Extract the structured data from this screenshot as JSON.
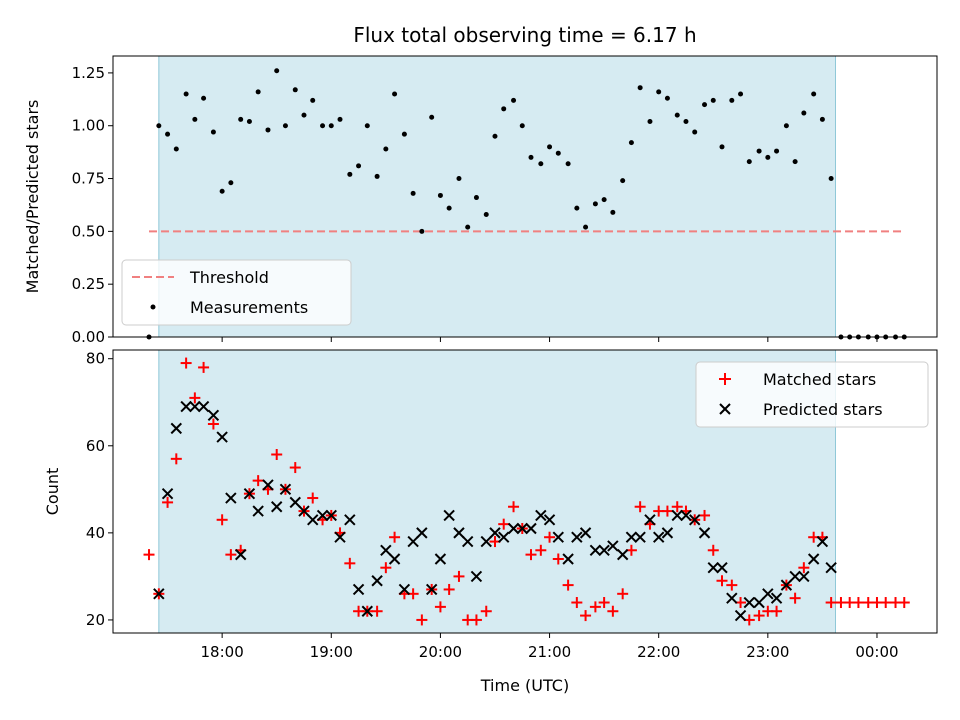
{
  "figure": {
    "title": "Flux total observing time = 6.17 h",
    "xlabel": "Time (UTC)",
    "x_ticks": [
      "18:00",
      "19:00",
      "20:00",
      "21:00",
      "22:00",
      "23:00",
      "00:00"
    ]
  },
  "chart_data": [
    {
      "type": "scatter",
      "title": "Flux total observing time = 6.17 h",
      "xlabel": "",
      "ylabel": "Matched/Predicted stars",
      "x_unit": "hours UTC",
      "xlim": [
        17.0,
        24.55
      ],
      "ylim": [
        0,
        1.33
      ],
      "y_ticks": [
        "0.00",
        "0.25",
        "0.50",
        "0.75",
        "1.00",
        "1.25"
      ],
      "observing_window": [
        17.42,
        23.62
      ],
      "threshold": {
        "name": "Threshold",
        "value": 0.5,
        "x_range": [
          17.33,
          24.25
        ],
        "color": "#f08080"
      },
      "legend": {
        "location": "lower-left",
        "entries": [
          "Threshold",
          "Measurements"
        ]
      },
      "series": [
        {
          "name": "Measurements",
          "color": "#000000",
          "points": [
            [
              17.33,
              0.0
            ],
            [
              17.42,
              1.0
            ],
            [
              17.5,
              0.96
            ],
            [
              17.58,
              0.89
            ],
            [
              17.67,
              1.15
            ],
            [
              17.75,
              1.03
            ],
            [
              17.83,
              1.13
            ],
            [
              17.92,
              0.97
            ],
            [
              18.0,
              0.69
            ],
            [
              18.08,
              0.73
            ],
            [
              18.17,
              1.03
            ],
            [
              18.25,
              1.02
            ],
            [
              18.33,
              1.16
            ],
            [
              18.42,
              0.98
            ],
            [
              18.5,
              1.26
            ],
            [
              18.58,
              1.0
            ],
            [
              18.67,
              1.17
            ],
            [
              18.75,
              1.05
            ],
            [
              18.83,
              1.12
            ],
            [
              18.92,
              1.0
            ],
            [
              19.0,
              1.0
            ],
            [
              19.08,
              1.03
            ],
            [
              19.17,
              0.77
            ],
            [
              19.25,
              0.81
            ],
            [
              19.33,
              1.0
            ],
            [
              19.42,
              0.76
            ],
            [
              19.5,
              0.89
            ],
            [
              19.58,
              1.15
            ],
            [
              19.67,
              0.96
            ],
            [
              19.75,
              0.68
            ],
            [
              19.83,
              0.5
            ],
            [
              19.92,
              1.04
            ],
            [
              20.0,
              0.67
            ],
            [
              20.08,
              0.61
            ],
            [
              20.17,
              0.75
            ],
            [
              20.25,
              0.52
            ],
            [
              20.33,
              0.66
            ],
            [
              20.42,
              0.58
            ],
            [
              20.5,
              0.95
            ],
            [
              20.58,
              1.08
            ],
            [
              20.67,
              1.12
            ],
            [
              20.75,
              1.0
            ],
            [
              20.83,
              0.85
            ],
            [
              20.92,
              0.82
            ],
            [
              21.0,
              0.9
            ],
            [
              21.08,
              0.87
            ],
            [
              21.17,
              0.82
            ],
            [
              21.25,
              0.61
            ],
            [
              21.33,
              0.52
            ],
            [
              21.42,
              0.63
            ],
            [
              21.5,
              0.65
            ],
            [
              21.58,
              0.59
            ],
            [
              21.67,
              0.74
            ],
            [
              21.75,
              0.92
            ],
            [
              21.83,
              1.18
            ],
            [
              21.92,
              1.02
            ],
            [
              22.0,
              1.16
            ],
            [
              22.08,
              1.13
            ],
            [
              22.17,
              1.05
            ],
            [
              22.25,
              1.02
            ],
            [
              22.33,
              0.97
            ],
            [
              22.42,
              1.1
            ],
            [
              22.5,
              1.12
            ],
            [
              22.58,
              0.9
            ],
            [
              22.67,
              1.12
            ],
            [
              22.75,
              1.15
            ],
            [
              22.83,
              0.83
            ],
            [
              22.92,
              0.88
            ],
            [
              23.0,
              0.85
            ],
            [
              23.08,
              0.88
            ],
            [
              23.17,
              1.0
            ],
            [
              23.25,
              0.83
            ],
            [
              23.33,
              1.06
            ],
            [
              23.42,
              1.15
            ],
            [
              23.5,
              1.03
            ],
            [
              23.58,
              0.75
            ],
            [
              23.67,
              0.0
            ],
            [
              23.75,
              0.0
            ],
            [
              23.83,
              0.0
            ],
            [
              23.92,
              0.0
            ],
            [
              24.0,
              0.0
            ],
            [
              24.08,
              0.0
            ],
            [
              24.17,
              0.0
            ],
            [
              24.25,
              0.0
            ]
          ]
        }
      ]
    },
    {
      "type": "scatter",
      "xlabel": "Time (UTC)",
      "ylabel": "Count",
      "x_unit": "hours UTC",
      "xlim": [
        17.0,
        24.55
      ],
      "ylim": [
        17,
        82
      ],
      "y_ticks": [
        "20",
        "40",
        "60",
        "80"
      ],
      "observing_window": [
        17.42,
        23.62
      ],
      "legend": {
        "location": "top-right",
        "entries": [
          "Matched stars",
          "Predicted stars"
        ]
      },
      "series": [
        {
          "name": "Matched stars",
          "marker": "plus",
          "color": "#ff0000",
          "points": [
            [
              17.33,
              35
            ],
            [
              17.42,
              26
            ],
            [
              17.5,
              47
            ],
            [
              17.58,
              57
            ],
            [
              17.67,
              79
            ],
            [
              17.75,
              71
            ],
            [
              17.83,
              78
            ],
            [
              17.92,
              65
            ],
            [
              18.0,
              43
            ],
            [
              18.08,
              35
            ],
            [
              18.17,
              36
            ],
            [
              18.25,
              49
            ],
            [
              18.33,
              52
            ],
            [
              18.42,
              50
            ],
            [
              18.5,
              58
            ],
            [
              18.58,
              50
            ],
            [
              18.67,
              55
            ],
            [
              18.75,
              45
            ],
            [
              18.83,
              48
            ],
            [
              18.92,
              43
            ],
            [
              19.0,
              44
            ],
            [
              19.08,
              40
            ],
            [
              19.17,
              33
            ],
            [
              19.25,
              22
            ],
            [
              19.33,
              22
            ],
            [
              19.42,
              22
            ],
            [
              19.5,
              32
            ],
            [
              19.58,
              39
            ],
            [
              19.67,
              26
            ],
            [
              19.75,
              26
            ],
            [
              19.83,
              20
            ],
            [
              19.92,
              27
            ],
            [
              20.0,
              23
            ],
            [
              20.08,
              27
            ],
            [
              20.17,
              30
            ],
            [
              20.25,
              20
            ],
            [
              20.33,
              20
            ],
            [
              20.42,
              22
            ],
            [
              20.5,
              38
            ],
            [
              20.58,
              42
            ],
            [
              20.67,
              46
            ],
            [
              20.75,
              41
            ],
            [
              20.83,
              35
            ],
            [
              20.92,
              36
            ],
            [
              21.0,
              39
            ],
            [
              21.08,
              34
            ],
            [
              21.17,
              28
            ],
            [
              21.25,
              24
            ],
            [
              21.33,
              21
            ],
            [
              21.42,
              23
            ],
            [
              21.5,
              24
            ],
            [
              21.58,
              22
            ],
            [
              21.67,
              26
            ],
            [
              21.75,
              36
            ],
            [
              21.83,
              46
            ],
            [
              21.92,
              42
            ],
            [
              22.0,
              45
            ],
            [
              22.08,
              45
            ],
            [
              22.17,
              46
            ],
            [
              22.25,
              45
            ],
            [
              22.33,
              43
            ],
            [
              22.42,
              44
            ],
            [
              22.5,
              36
            ],
            [
              22.58,
              29
            ],
            [
              22.67,
              28
            ],
            [
              22.75,
              24
            ],
            [
              22.83,
              20
            ],
            [
              22.92,
              21
            ],
            [
              23.0,
              22
            ],
            [
              23.08,
              22
            ],
            [
              23.17,
              28
            ],
            [
              23.25,
              25
            ],
            [
              23.33,
              32
            ],
            [
              23.42,
              39
            ],
            [
              23.5,
              39
            ],
            [
              23.58,
              24
            ],
            [
              23.67,
              24
            ],
            [
              23.75,
              24
            ],
            [
              23.83,
              24
            ],
            [
              23.92,
              24
            ],
            [
              24.0,
              24
            ],
            [
              24.08,
              24
            ],
            [
              24.17,
              24
            ],
            [
              24.25,
              24
            ]
          ]
        },
        {
          "name": "Predicted stars",
          "marker": "x",
          "color": "#000000",
          "points": [
            [
              17.42,
              26
            ],
            [
              17.5,
              49
            ],
            [
              17.58,
              64
            ],
            [
              17.67,
              69
            ],
            [
              17.75,
              69
            ],
            [
              17.83,
              69
            ],
            [
              17.92,
              67
            ],
            [
              18.0,
              62
            ],
            [
              18.08,
              48
            ],
            [
              18.17,
              35
            ],
            [
              18.25,
              49
            ],
            [
              18.33,
              45
            ],
            [
              18.42,
              51
            ],
            [
              18.5,
              46
            ],
            [
              18.58,
              50
            ],
            [
              18.67,
              47
            ],
            [
              18.75,
              45
            ],
            [
              18.83,
              43
            ],
            [
              18.92,
              44
            ],
            [
              19.0,
              44
            ],
            [
              19.08,
              39
            ],
            [
              19.17,
              43
            ],
            [
              19.25,
              27
            ],
            [
              19.33,
              22
            ],
            [
              19.42,
              29
            ],
            [
              19.5,
              36
            ],
            [
              19.58,
              34
            ],
            [
              19.67,
              27
            ],
            [
              19.75,
              38
            ],
            [
              19.83,
              40
            ],
            [
              19.92,
              27
            ],
            [
              20.0,
              34
            ],
            [
              20.08,
              44
            ],
            [
              20.17,
              40
            ],
            [
              20.25,
              38
            ],
            [
              20.33,
              30
            ],
            [
              20.42,
              38
            ],
            [
              20.5,
              40
            ],
            [
              20.58,
              39
            ],
            [
              20.67,
              41
            ],
            [
              20.75,
              41
            ],
            [
              20.83,
              41
            ],
            [
              20.92,
              44
            ],
            [
              21.0,
              43
            ],
            [
              21.08,
              39
            ],
            [
              21.17,
              34
            ],
            [
              21.25,
              39
            ],
            [
              21.33,
              40
            ],
            [
              21.42,
              36
            ],
            [
              21.5,
              36
            ],
            [
              21.58,
              37
            ],
            [
              21.67,
              35
            ],
            [
              21.75,
              39
            ],
            [
              21.83,
              39
            ],
            [
              21.92,
              43
            ],
            [
              22.0,
              39
            ],
            [
              22.08,
              40
            ],
            [
              22.17,
              44
            ],
            [
              22.25,
              44
            ],
            [
              22.33,
              43
            ],
            [
              22.42,
              40
            ],
            [
              22.5,
              32
            ],
            [
              22.58,
              32
            ],
            [
              22.67,
              25
            ],
            [
              22.75,
              21
            ],
            [
              22.83,
              24
            ],
            [
              22.92,
              24
            ],
            [
              23.0,
              26
            ],
            [
              23.08,
              25
            ],
            [
              23.17,
              28
            ],
            [
              23.25,
              30
            ],
            [
              23.33,
              30
            ],
            [
              23.42,
              34
            ],
            [
              23.5,
              38
            ],
            [
              23.58,
              32
            ]
          ]
        }
      ]
    }
  ]
}
